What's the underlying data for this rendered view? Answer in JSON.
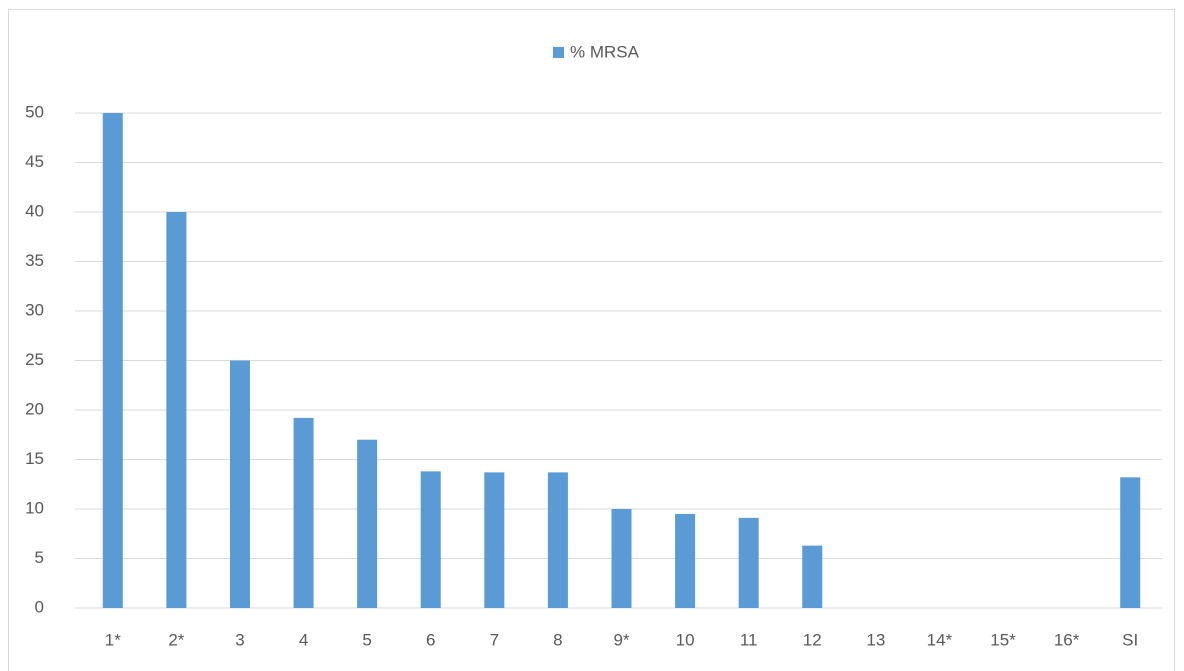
{
  "chart_data": {
    "type": "bar",
    "legend": "% MRSA",
    "categories": [
      "1*",
      "2*",
      "3",
      "4",
      "5",
      "6",
      "7",
      "8",
      "9*",
      "10",
      "11",
      "12",
      "13",
      "14*",
      "15*",
      "16*",
      "SI"
    ],
    "values": [
      50,
      40,
      25,
      19.2,
      17,
      13.8,
      13.7,
      13.7,
      10,
      9.5,
      9.1,
      6.3,
      0,
      0,
      0,
      0,
      13.2
    ],
    "color": "#5b9bd5",
    "ylim": [
      0,
      50
    ],
    "yticks": [
      0,
      5,
      10,
      15,
      20,
      25,
      30,
      35,
      40,
      45,
      50
    ],
    "grid": true
  }
}
